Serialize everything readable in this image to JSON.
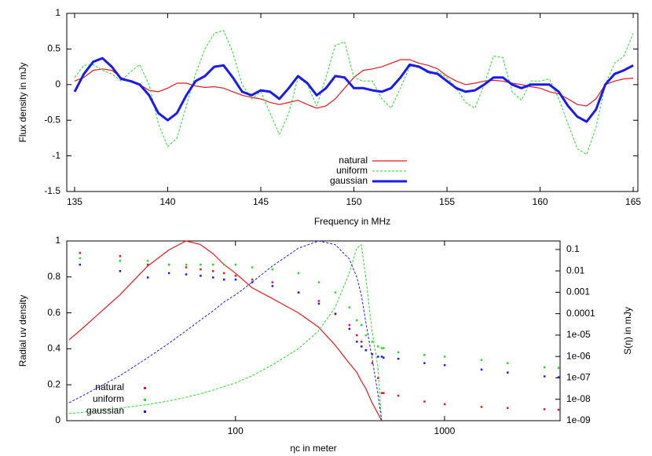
{
  "chart_data": [
    {
      "type": "line",
      "xlabel": "Frequency in MHz",
      "ylabel": "Flux density in mJy",
      "x": [
        135,
        135.5,
        136,
        136.5,
        137,
        137.5,
        138,
        138.5,
        139,
        139.5,
        140,
        140.5,
        141,
        141.5,
        142,
        142.5,
        143,
        143.5,
        144,
        144.5,
        145,
        145.5,
        146,
        146.5,
        147,
        147.5,
        148,
        148.5,
        149,
        149.5,
        150,
        150.5,
        151,
        151.5,
        152,
        152.5,
        153,
        153.5,
        154,
        154.5,
        155,
        155.5,
        156,
        156.5,
        157,
        157.5,
        158,
        158.5,
        159,
        159.5,
        160,
        160.5,
        161,
        161.5,
        162,
        162.5,
        163,
        163.5,
        164,
        164.5,
        165
      ],
      "xlim": [
        134.58,
        165.25
      ],
      "xticks": [
        135,
        140,
        145,
        150,
        155,
        160,
        165
      ],
      "ylim": [
        -1.5,
        1
      ],
      "yticks": [
        -1.5,
        -1,
        -0.5,
        0,
        0.5,
        1
      ],
      "legend": "bottom",
      "series": [
        {
          "name": "natural",
          "color": "#e41a1c",
          "style": "line",
          "values": [
            0.05,
            0.1,
            0.2,
            0.22,
            0.2,
            0.1,
            0.05,
            0,
            -0.08,
            -0.1,
            -0.05,
            0.02,
            0.02,
            -0.02,
            -0.04,
            -0.03,
            -0.05,
            -0.1,
            -0.15,
            -0.18,
            -0.2,
            -0.25,
            -0.28,
            -0.25,
            -0.22,
            -0.28,
            -0.33,
            -0.3,
            -0.2,
            -0.05,
            0.1,
            0.2,
            0.22,
            0.25,
            0.3,
            0.35,
            0.35,
            0.3,
            0.27,
            0.22,
            0.12,
            0.05,
            0,
            0.02,
            0.05,
            0.06,
            0.05,
            0.02,
            0,
            -0.03,
            -0.05,
            -0.1,
            -0.13,
            -0.2,
            -0.28,
            -0.3,
            -0.2,
            0,
            0.05,
            0.08,
            0.09
          ]
        },
        {
          "name": "uniform",
          "color": "#22dd22",
          "style": "dashed",
          "values": [
            0.1,
            0.27,
            0.28,
            0.2,
            0.15,
            0.05,
            0.18,
            0.28,
            0,
            -0.55,
            -0.87,
            -0.75,
            -0.3,
            0.15,
            0.5,
            0.72,
            0.76,
            0.45,
            0,
            -0.2,
            -0.1,
            -0.4,
            -0.7,
            -0.4,
            0.1,
            0,
            -0.3,
            0.1,
            0.55,
            0.6,
            0.1,
            0.05,
            0.05,
            -0.2,
            -0.33,
            -0.05,
            0.25,
            0.27,
            0.15,
            0.18,
            0.1,
            -0.05,
            -0.25,
            -0.33,
            0,
            0.4,
            0.38,
            -0.1,
            -0.22,
            0.05,
            0.05,
            0.08,
            -0.2,
            -0.55,
            -0.9,
            -0.98,
            -0.6,
            0,
            0.3,
            0.4,
            0.72
          ]
        },
        {
          "name": "gaussian",
          "color": "#1a1aee",
          "style": "thick",
          "values": [
            -0.1,
            0.15,
            0.32,
            0.37,
            0.25,
            0.08,
            0.05,
            0,
            -0.15,
            -0.4,
            -0.5,
            -0.4,
            -0.15,
            0.05,
            0.12,
            0.25,
            0.27,
            0.1,
            -0.1,
            -0.15,
            -0.08,
            -0.1,
            -0.2,
            -0.05,
            0.12,
            0.02,
            -0.15,
            -0.05,
            0.12,
            0.1,
            -0.05,
            -0.05,
            -0.08,
            -0.1,
            -0.05,
            0.1,
            0.28,
            0.25,
            0.18,
            0.15,
            0.05,
            -0.05,
            -0.1,
            -0.08,
            0,
            0.1,
            0.1,
            0,
            -0.05,
            0,
            0,
            0,
            -0.1,
            -0.3,
            -0.45,
            -0.52,
            -0.35,
            0,
            0.15,
            0.2,
            0.27
          ]
        }
      ]
    },
    {
      "type": "line",
      "xlabel": "ηc in meter",
      "ylabel": "Radial uv density",
      "y2label": "S(η) in mJy",
      "x": [
        16,
        18,
        28,
        38,
        48,
        58,
        68,
        78,
        88,
        100,
        120,
        150,
        200,
        250,
        300,
        350,
        380,
        400,
        420,
        450,
        480,
        500,
        510,
        600,
        800,
        1000,
        1500,
        2000,
        3000,
        3500
      ],
      "xlim": [
        15.6,
        3570
      ],
      "xticks": [
        100,
        1000
      ],
      "xlog": true,
      "ylim": [
        0,
        1
      ],
      "yticks": [
        0,
        0.2,
        0.4,
        0.6,
        0.8,
        1
      ],
      "y2lim": [
        1e-09,
        0.25
      ],
      "y2log": true,
      "y2ticks": [
        0.1,
        0.01,
        0.001,
        0.0001,
        {
          "value": 1e-05,
          "label": "1e-05"
        },
        {
          "value": 1e-06,
          "label": "1e-06"
        },
        {
          "value": 1e-07,
          "label": "1e-07"
        },
        {
          "value": 1e-08,
          "label": "1e-08"
        },
        {
          "value": 1e-09,
          "label": "1e-09"
        }
      ],
      "legend": "lower left",
      "series": [
        {
          "color": "#e41a1c",
          "style": "line",
          "values": [
            0.45,
            0.5,
            0.7,
            0.86,
            0.95,
            1,
            0.98,
            0.93,
            0.87,
            0.82,
            0.74,
            0.68,
            0.6,
            0.52,
            0.42,
            0.32,
            0.27,
            0.22,
            0.18,
            0.1,
            0.04,
            0,
            null,
            null,
            null,
            null,
            null,
            null,
            null,
            null
          ]
        },
        {
          "color": "#22dd22",
          "style": "dashed",
          "values": [
            0.04,
            0.045,
            0.07,
            0.09,
            0.11,
            0.13,
            0.15,
            0.17,
            0.19,
            0.21,
            0.25,
            0.31,
            0.4,
            0.5,
            0.63,
            0.82,
            0.96,
            0.98,
            0.8,
            0.5,
            0.3,
            0,
            null,
            null,
            null,
            null,
            null,
            null,
            null,
            null
          ]
        },
        {
          "color": "#1a1aee",
          "style": "dashed",
          "values": [
            0.1,
            0.13,
            0.25,
            0.35,
            0.43,
            0.5,
            0.56,
            0.61,
            0.66,
            0.7,
            0.77,
            0.86,
            0.96,
            1,
            0.98,
            0.9,
            0.8,
            0.7,
            0.55,
            0.35,
            0.15,
            0,
            null,
            null,
            null,
            null,
            null,
            null,
            null,
            null
          ]
        },
        {
          "name": "natural",
          "color": "#e41a1c",
          "style": "points",
          "axis": "y2",
          "values": [
            null,
            0.07,
            0.05,
            0.02,
            0.02,
            0.015,
            0.012,
            0.01,
            0.008,
            0.006,
            0.004,
            0.003,
            0.001,
            0.0004,
            0.0001,
            3e-05,
            1e-05,
            5e-06,
            2e-06,
            5e-07,
            1e-07,
            2e-08,
            2e-08,
            1.5e-08,
            8e-09,
            6e-09,
            4.5e-09,
            4e-09,
            3.5e-09,
            3.3e-09
          ]
        },
        {
          "name": "uniform",
          "color": "#22dd22",
          "style": "points",
          "axis": "y2",
          "values": [
            null,
            0.04,
            0.03,
            0.03,
            0.02,
            0.02,
            0.02,
            0.02,
            0.02,
            0.02,
            0.015,
            0.012,
            0.008,
            0.003,
            0.001,
            0.0002,
            5e-05,
            3e-05,
            1e-05,
            5e-06,
            3e-06,
            2.5e-06,
            2.5e-06,
            1.6e-06,
            1.2e-06,
            1e-06,
            7e-07,
            5e-07,
            3.2e-07,
            3e-07
          ]
        },
        {
          "name": "gaussian",
          "color": "#1a1aee",
          "style": "points",
          "axis": "y2",
          "values": [
            null,
            0.02,
            0.01,
            0.005,
            0.008,
            0.007,
            0.006,
            0.005,
            0.004,
            0.004,
            0.003,
            0.002,
            0.001,
            0.0003,
            0.0001,
            2e-05,
            5e-06,
            3e-06,
            2e-06,
            1.3e-06,
            1e-06,
            1e-06,
            9e-07,
            8e-07,
            5e-07,
            4e-07,
            2.5e-07,
            1.8e-07,
            1.2e-07,
            1.1e-07
          ]
        }
      ]
    }
  ]
}
